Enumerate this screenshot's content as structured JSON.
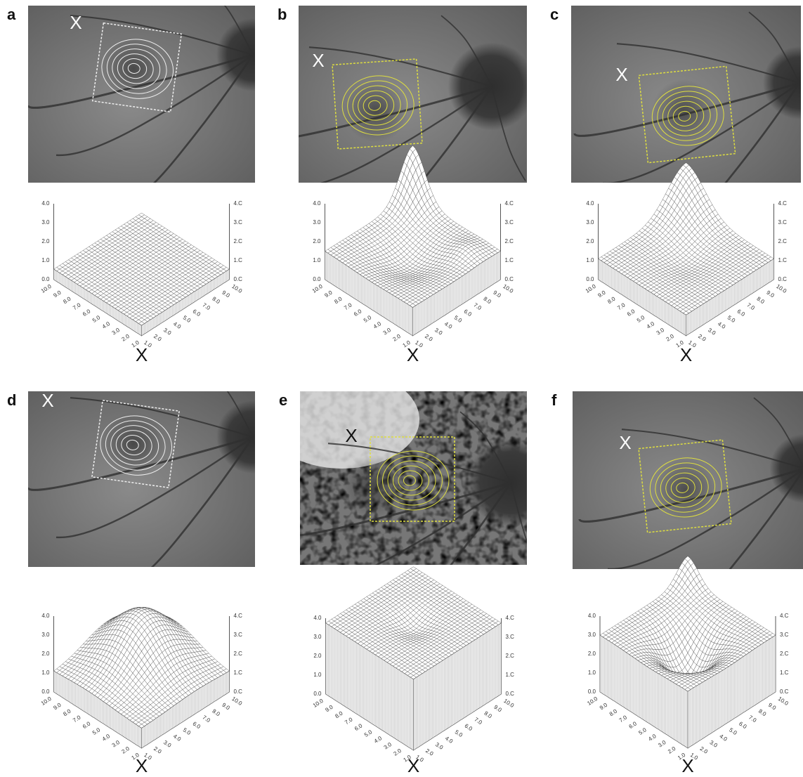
{
  "panels": [
    {
      "label": "a",
      "photo_marker": "X",
      "plot_marker": "X"
    },
    {
      "label": "b",
      "photo_marker": "X",
      "plot_marker": "X"
    },
    {
      "label": "c",
      "photo_marker": "X",
      "plot_marker": "X"
    },
    {
      "label": "d",
      "photo_marker": "X",
      "plot_marker": "X"
    },
    {
      "label": "e",
      "photo_marker": "X",
      "plot_marker": "X"
    },
    {
      "label": "f",
      "photo_marker": "X",
      "plot_marker": "X"
    }
  ],
  "axis": {
    "z_ticks": [
      "0.0",
      "1.0",
      "2.0",
      "3.0",
      "4.0"
    ],
    "z_ticks_right": [
      "0.C",
      "1.C",
      "2.C",
      "3.C",
      "4.C"
    ],
    "base_ticks": [
      "1.0",
      "2.0",
      "3.0",
      "4.0",
      "5.0",
      "6.0",
      "7.0",
      "8.0",
      "9.0",
      "10.0"
    ]
  }
}
